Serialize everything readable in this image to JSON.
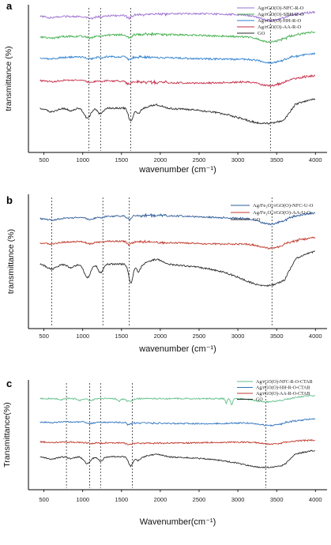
{
  "chart_data": [
    {
      "panel_label": "a",
      "type": "line",
      "xlabel": "wavenumber (cm⁻¹)",
      "ylabel": "transmittance (%)",
      "xlim": [
        300,
        4150
      ],
      "xticks": [
        500,
        1000,
        1500,
        2000,
        2500,
        3000,
        3500,
        4000
      ],
      "xtick_labels": [
        "500",
        "1000",
        "1500",
        "2000",
        "2500",
        "3000",
        "3500",
        "4000"
      ],
      "yticks": [],
      "legend_position": "top-right",
      "dashed_lines_x": [
        1080,
        1230,
        1620,
        3420
      ],
      "series": [
        {
          "name": "Ag/rGO(O)-NFC-R-O",
          "color": "#9b6fd0",
          "offset": 0.93,
          "depth": 0.08
        },
        {
          "name": "Ag/rGO(O)-SBH-R-O",
          "color": "#3fae4a",
          "offset": 0.79,
          "depth": 0.08
        },
        {
          "name": "Ag/rGO(O)-HH-R-O",
          "color": "#2d7fd0",
          "offset": 0.64,
          "depth": 0.07
        },
        {
          "name": "Ag/rGO(O)-AA-R-O",
          "color": "#c62f4a",
          "offset": 0.48,
          "depth": 0.08
        },
        {
          "name": "GO",
          "color": "#2a2a2a",
          "offset": 0.3,
          "depth": 0.3
        }
      ]
    },
    {
      "panel_label": "b",
      "type": "line",
      "xlabel": "wavenumber (cm⁻¹)",
      "ylabel": "transmittance (%)",
      "xlim": [
        300,
        4150
      ],
      "xticks": [
        500,
        1000,
        1500,
        2000,
        2500,
        3000,
        3500,
        4000
      ],
      "xtick_labels": [
        "500",
        "1000",
        "1500",
        "2000",
        "2500",
        "3000",
        "3500",
        "4000"
      ],
      "yticks": [],
      "legend_position": "top-right",
      "dashed_lines_x": [
        600,
        1260,
        1600,
        3440
      ],
      "series": [
        {
          "name": "Ag/Fe₃O₄/rGO(O)-NFC-U-O",
          "color": "#2d5a96",
          "offset": 0.83,
          "depth": 0.1
        },
        {
          "name": "Ag/Fe₃O₄/rGO(O)-AA-U-O",
          "color": "#c0392b",
          "offset": 0.64,
          "depth": 0.09
        },
        {
          "name": "GO",
          "color": "#2a2a2a",
          "offset": 0.48,
          "depth": 0.46
        }
      ]
    },
    {
      "panel_label": "c",
      "type": "line",
      "xlabel": "Wavenumber(cm⁻¹)",
      "ylabel": "Transmittance(%)",
      "xlim": [
        300,
        4150
      ],
      "xticks": [
        500,
        1000,
        1500,
        2000,
        2500,
        3000,
        3500,
        4000
      ],
      "xtick_labels": [
        "500",
        "1000",
        "1500",
        "2000",
        "2500",
        "3000",
        "3500",
        "4000"
      ],
      "yticks": [],
      "legend_position": "top-right",
      "dashed_lines_x": [
        790,
        1090,
        1230,
        1640,
        3360
      ],
      "series": [
        {
          "name": "Ag/rGO(O)-NFC-R-O-CTAB",
          "color": "#5fbf8a",
          "offset": 0.83,
          "depth": 0.1
        },
        {
          "name": "Ag/rGO(O)-HH-R-O-CTAB",
          "color": "#2f74c0",
          "offset": 0.61,
          "depth": 0.07
        },
        {
          "name": "Ag/rGO(O)-AA-R-O-CTAB",
          "color": "#c0392b",
          "offset": 0.43,
          "depth": 0.05
        },
        {
          "name": "GO",
          "color": "#2a2a2a",
          "offset": 0.3,
          "depth": 0.28
        }
      ]
    }
  ]
}
